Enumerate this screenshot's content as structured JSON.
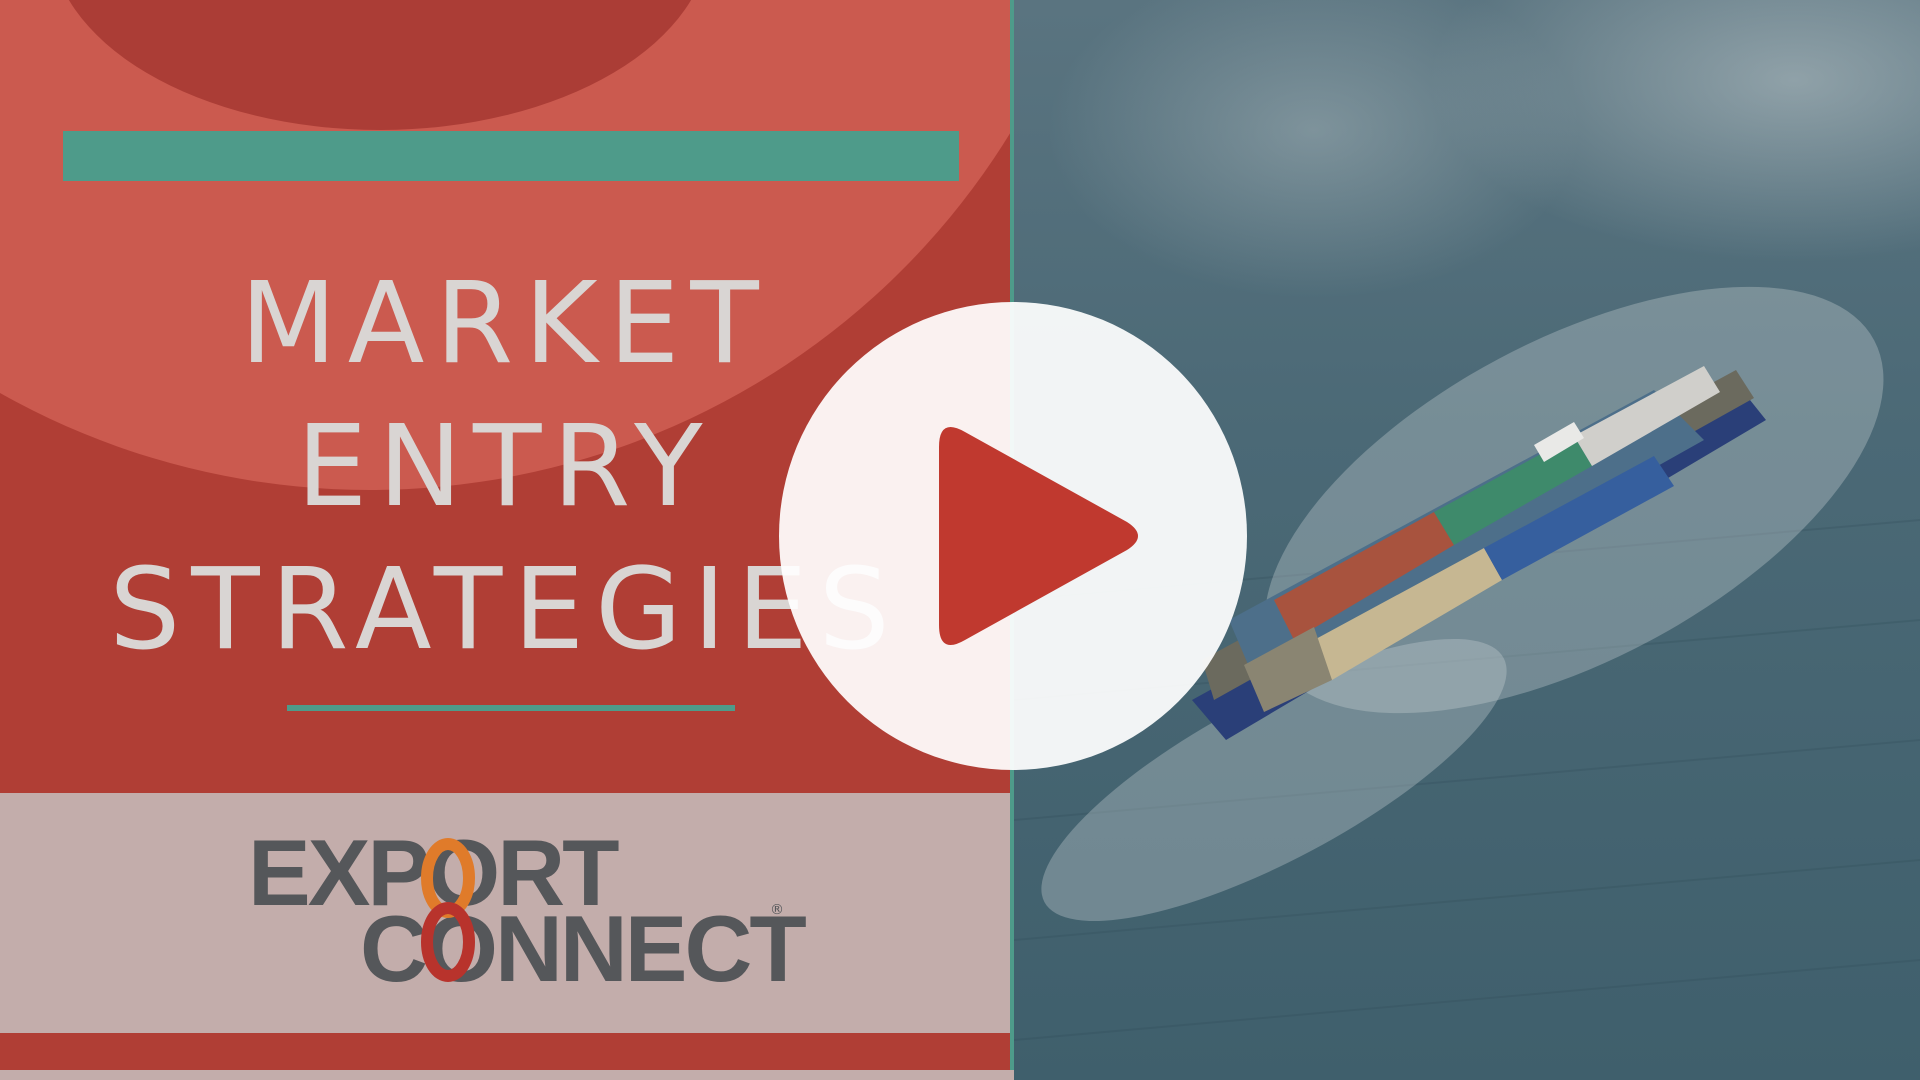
{
  "title": {
    "line1": "MARKET",
    "line2": "ENTRY",
    "line3": "STRATEGIES"
  },
  "logo": {
    "line1": "EXPORT",
    "line2": "CONNECT",
    "registered": "®"
  },
  "player": {
    "play_icon": "play-icon"
  },
  "colors": {
    "background_red": "#b03e35",
    "accent_teal": "#4e9b8a",
    "logo_band": "#c3adab",
    "logo_gray": "#55575a",
    "logo_orange": "#e07b2a",
    "logo_red": "#b8332c",
    "title_text": "#d9d5d3",
    "play_red": "#c0392f"
  },
  "image": {
    "icon": "container-ship-photo"
  }
}
